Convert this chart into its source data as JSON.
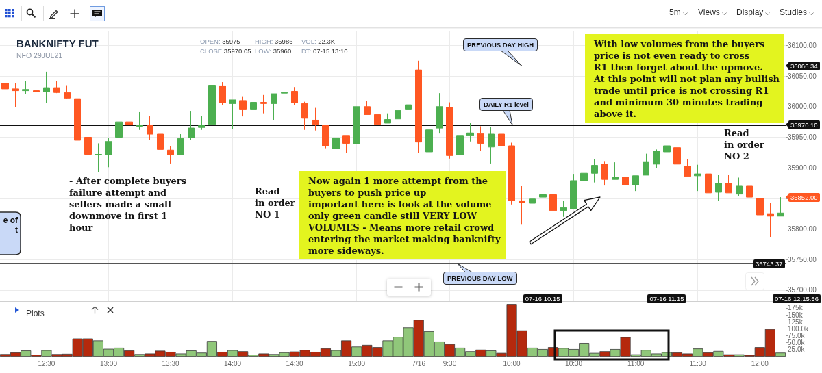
{
  "chart_data": [
    {
      "type": "candlestick",
      "title": "BANKNIFTY FUT",
      "subtitle": "NFO 29JUL21",
      "categories": [
        null,
        null,
        null,
        null,
        "12:30",
        null,
        null,
        null,
        null,
        null,
        "13:00",
        null,
        null,
        null,
        null,
        null,
        "13:30",
        null,
        null,
        null,
        null,
        null,
        "14:00",
        null,
        null,
        null,
        null,
        null,
        "14:30",
        null,
        null,
        null,
        null,
        null,
        "15:00",
        null,
        null,
        null,
        null,
        null,
        "7/16",
        null,
        null,
        "9:30",
        null,
        null,
        null,
        null,
        null,
        "10:00",
        null,
        null,
        null,
        null,
        null,
        "10:30",
        null,
        null,
        null,
        null,
        null,
        "11:00",
        null,
        null,
        null,
        null,
        null,
        "11:30",
        null,
        null,
        null,
        null,
        null,
        "12:00",
        null,
        null
      ],
      "ohlc": [
        [
          36038,
          36049,
          36028,
          36029
        ],
        [
          36029,
          36038,
          35999,
          36026
        ],
        [
          36026,
          36042,
          36021,
          36028
        ],
        [
          36026,
          36035,
          36017,
          36024
        ],
        [
          36024,
          36057,
          36006,
          36031
        ],
        [
          36031,
          36042,
          36022,
          36023
        ],
        [
          36023,
          36035,
          36013,
          36014
        ],
        [
          36013,
          36017,
          35941,
          35945
        ],
        [
          35950,
          35963,
          35908,
          35922
        ],
        [
          35921,
          35940,
          35893,
          35922
        ],
        [
          35921,
          35949,
          35901,
          35943
        ],
        [
          35950,
          35984,
          35946,
          35975
        ],
        [
          35975,
          35986,
          35960,
          35970.05
        ],
        [
          35968,
          35992,
          35962,
          35970
        ],
        [
          35969,
          35985,
          35946,
          35955
        ],
        [
          35955,
          35956,
          35918,
          35930
        ],
        [
          35929,
          35936,
          35907,
          35921
        ],
        [
          35921,
          35955,
          35921,
          35948
        ],
        [
          35949,
          35993,
          35946,
          35965
        ],
        [
          35966,
          35985,
          35962,
          35969
        ],
        [
          35971,
          36040,
          35971,
          36035
        ],
        [
          36034,
          36040,
          36003,
          36006
        ],
        [
          36005,
          36011,
          35964,
          36011
        ],
        [
          36010,
          36017,
          35984,
          35996
        ],
        [
          35996,
          36009,
          35984,
          36007
        ],
        [
          36007,
          36019,
          35989,
          36005
        ],
        [
          36005,
          36021,
          35978,
          36021
        ],
        [
          36022,
          36023,
          36001,
          36023
        ],
        [
          36025,
          36032,
          36003,
          36006
        ],
        [
          36005,
          36008,
          35962,
          35981
        ],
        [
          35978,
          35998,
          35961,
          35971
        ],
        [
          35970,
          35970,
          35932,
          35936
        ],
        [
          35931,
          35959,
          35931,
          35949
        ],
        [
          35953,
          35953,
          35924,
          35940
        ],
        [
          35939,
          36000,
          35939,
          36000
        ],
        [
          36000,
          36009,
          35987,
          35987
        ],
        [
          35987,
          35987,
          35961,
          35971
        ],
        [
          35973,
          35989,
          35973,
          35979
        ],
        [
          35980,
          35994,
          35980,
          35994
        ],
        [
          35996,
          36013,
          35991,
          36003
        ],
        [
          36060,
          36075,
          35924,
          35942
        ],
        [
          35926,
          35962,
          35902,
          35962
        ],
        [
          35965,
          36022,
          35956,
          36000
        ],
        [
          35999,
          36007,
          35915,
          35920
        ],
        [
          35921,
          35957,
          35910,
          35953
        ],
        [
          35953,
          35973,
          35943,
          35957
        ],
        [
          35956,
          35968,
          35928,
          35940
        ],
        [
          35934,
          35967,
          35907,
          35955
        ],
        [
          35955,
          35955,
          35928,
          35936
        ],
        [
          35936,
          35941,
          35840,
          35846
        ],
        [
          35846,
          35870,
          35807,
          35843
        ],
        [
          35842,
          35880,
          35835,
          35849
        ],
        [
          35852,
          35867,
          35844,
          35856
        ],
        [
          35856,
          35856,
          35811,
          35830
        ],
        [
          35830,
          35846,
          35820,
          35835
        ],
        [
          35833,
          35890,
          35833,
          35879
        ],
        [
          35879,
          35923,
          35872,
          35891
        ],
        [
          35891,
          35914,
          35876,
          35904
        ],
        [
          35906,
          35911,
          35871,
          35881
        ],
        [
          35881,
          35909,
          35881,
          35885
        ],
        [
          35885,
          35885,
          35854,
          35872
        ],
        [
          35872,
          35887,
          35862,
          35887
        ],
        [
          35888,
          35923,
          35888,
          35910
        ],
        [
          35906,
          35930,
          35900,
          35927
        ],
        [
          35926,
          35936,
          35902,
          35936
        ],
        [
          35933,
          35947,
          35906,
          35906
        ],
        [
          35903,
          35914,
          35886,
          35886
        ],
        [
          35887,
          35905,
          35862,
          35890
        ],
        [
          35890,
          35895,
          35853,
          35859
        ],
        [
          35860,
          35888,
          35846,
          35875
        ],
        [
          35875,
          35888,
          35859,
          35859
        ],
        [
          35857,
          35884,
          35854,
          35870
        ],
        [
          35870,
          35882,
          35852,
          35852
        ],
        [
          35850,
          35864,
          35823,
          35823
        ],
        [
          35825,
          35843,
          35787,
          35821
        ],
        [
          35821,
          35852,
          35821,
          35826
        ]
      ],
      "colors": [
        "#ff5722",
        "#ff5722",
        "#4caf50",
        "#ff5722",
        "#4caf50",
        "#ff5722",
        "#ff5722",
        "#ff5722",
        "#ff5722",
        "#4caf50",
        "#4caf50",
        "#4caf50",
        "#ff5722",
        "#4caf50",
        "#ff5722",
        "#ff5722",
        "#ff5722",
        "#4caf50",
        "#4caf50",
        "#4caf50",
        "#4caf50",
        "#ff5722",
        "#4caf50",
        "#ff5722",
        "#4caf50",
        "#ff5722",
        "#4caf50",
        "#4caf50",
        "#ff5722",
        "#ff5722",
        "#ff5722",
        "#ff5722",
        "#4caf50",
        "#ff5722",
        "#4caf50",
        "#ff5722",
        "#ff5722",
        "#4caf50",
        "#4caf50",
        "#4caf50",
        "#ff5722",
        "#4caf50",
        "#4caf50",
        "#ff5722",
        "#4caf50",
        "#4caf50",
        "#ff5722",
        "#4caf50",
        "#ff5722",
        "#ff5722",
        "#ff5722",
        "#4caf50",
        "#4caf50",
        "#ff5722",
        "#4caf50",
        "#4caf50",
        "#4caf50",
        "#4caf50",
        "#ff5722",
        "#4caf50",
        "#ff5722",
        "#4caf50",
        "#4caf50",
        "#4caf50",
        "#4caf50",
        "#ff5722",
        "#ff5722",
        "#4caf50",
        "#ff5722",
        "#4caf50",
        "#ff5722",
        "#4caf50",
        "#ff5722",
        "#ff5722",
        "#ff5722",
        "#4caf50"
      ],
      "ylim": [
        35682,
        36124
      ],
      "yticks": [
        {
          "value": 35700,
          "label": "35700.00"
        },
        {
          "value": 35750,
          "label": "35750.00"
        },
        {
          "value": 35800,
          "label": "35800.00"
        },
        {
          "value": 35850,
          "label": null
        },
        {
          "value": 35900,
          "label": "35900.00"
        },
        {
          "value": 35950,
          "label": "35950.00"
        },
        {
          "value": 36000,
          "label": "36000.00"
        },
        {
          "value": 36050,
          "label": "36050.00"
        },
        {
          "value": 36100,
          "label": "36100.00"
        }
      ],
      "grid": true,
      "ref_lines": [
        {
          "axis": "y",
          "value": 36066.34,
          "label": "36066.34",
          "color": "#555555"
        },
        {
          "axis": "y",
          "value": 35970.1,
          "label": "35970.10",
          "color": "#111111"
        },
        {
          "axis": "y",
          "value": 35743.37,
          "label": "35743.37",
          "color": "#555555"
        }
      ],
      "annotations": [
        "OPEN: 35975",
        "HIGH: 35986",
        "VOL: 22.3K",
        "CLOSE:35970.05",
        "LOW: 35960",
        "DT: 07-15 13:10",
        "- After complete buyers\nfailure attempt and\nsellers made a small\ndownmove in first 1\nhour",
        "Read\nin order\nNO 1",
        "Now again 1 more attempt from the\nbuyers to push price up\nimportant here is look at the volume\nonly green candle still VERY LOW\nVOLUMES - Means more retail crowd\nentering the market making banknifty\nmore sideways.",
        "With low volumes from the buyers\nprice is not even ready to cross\nR1 then forget about the upmove.\nAt this point will not plan any bullish\ntrade until price is not crossing R1\nand minimum 30 minutes trading\nabove it.",
        "Read\nin order\nNO 2",
        "e of\nt",
        "35852.00",
        "07-16 12:15:56",
        "5m",
        "Views",
        "Display",
        "Studies",
        {
          "text": "PREVIOUS DAY HIGH",
          "y": 36066.34
        },
        {
          "text": "DAILY R1 level",
          "y": 35970.1
        },
        {
          "text": "PREVIOUS DAY LOW",
          "y": 35743.37
        },
        "07-16 10:15",
        "07-16 11:15"
      ]
    },
    {
      "type": "bar",
      "title": "Plots",
      "categories": [
        null,
        null,
        null,
        null,
        null,
        null,
        null,
        null,
        null,
        null,
        null,
        null,
        null,
        null,
        null,
        null,
        null,
        null,
        null,
        null,
        null,
        null,
        null,
        null,
        null,
        null,
        null,
        null,
        null,
        null,
        null,
        null,
        null,
        null,
        null,
        null,
        null,
        null,
        null,
        null,
        null,
        null,
        null,
        null,
        null,
        null,
        null,
        null,
        null,
        null,
        null,
        null,
        null,
        null,
        null,
        null,
        null,
        null,
        null,
        null,
        null,
        null,
        null,
        null,
        null,
        null,
        null,
        null,
        null,
        null,
        null,
        null,
        null,
        null,
        null,
        null
      ],
      "values": [
        9000,
        15000,
        22000,
        7000,
        23000,
        9000,
        10000,
        65000,
        65000,
        58000,
        28000,
        32000,
        22300,
        9000,
        11000,
        21000,
        17000,
        11000,
        22000,
        14000,
        56000,
        17000,
        23000,
        19000,
        7000,
        11000,
        9000,
        15000,
        18000,
        24000,
        17000,
        30000,
        23000,
        58000,
        36000,
        42000,
        34000,
        58000,
        71000,
        105000,
        132000,
        91000,
        54000,
        45000,
        32000,
        19000,
        25000,
        22000,
        13000,
        189000,
        94000,
        32000,
        27000,
        34000,
        31000,
        27000,
        49000,
        13000,
        19000,
        27000,
        70000,
        8000,
        24000,
        11000,
        16000,
        15000,
        11000,
        29000,
        15000,
        20000,
        8000,
        8000,
        6000,
        34000,
        99000,
        14000
      ],
      "colors": [
        "#b5290d",
        "#b5290d",
        "#90c77a",
        "#b5290d",
        "#90c77a",
        "#b5290d",
        "#b5290d",
        "#b5290d",
        "#b5290d",
        "#90c77a",
        "#90c77a",
        "#90c77a",
        "#b5290d",
        "#90c77a",
        "#b5290d",
        "#b5290d",
        "#b5290d",
        "#90c77a",
        "#90c77a",
        "#90c77a",
        "#90c77a",
        "#b5290d",
        "#90c77a",
        "#b5290d",
        "#90c77a",
        "#b5290d",
        "#90c77a",
        "#90c77a",
        "#b5290d",
        "#b5290d",
        "#b5290d",
        "#b5290d",
        "#90c77a",
        "#b5290d",
        "#90c77a",
        "#b5290d",
        "#b5290d",
        "#90c77a",
        "#90c77a",
        "#90c77a",
        "#b5290d",
        "#90c77a",
        "#90c77a",
        "#b5290d",
        "#90c77a",
        "#90c77a",
        "#b5290d",
        "#90c77a",
        "#b5290d",
        "#b5290d",
        "#b5290d",
        "#90c77a",
        "#90c77a",
        "#b5290d",
        "#90c77a",
        "#90c77a",
        "#90c77a",
        "#90c77a",
        "#b5290d",
        "#90c77a",
        "#b5290d",
        "#90c77a",
        "#90c77a",
        "#90c77a",
        "#90c77a",
        "#b5290d",
        "#b5290d",
        "#90c77a",
        "#b5290d",
        "#90c77a",
        "#b5290d",
        "#90c77a",
        "#b5290d",
        "#b5290d",
        "#b5290d",
        "#90c77a"
      ],
      "ylim": [
        0,
        192000
      ],
      "yticks": [
        {
          "value": 25000,
          "label": "25.0k"
        },
        {
          "value": 50000,
          "label": "50.0k"
        },
        {
          "value": 75000,
          "label": "75.0k"
        },
        {
          "value": 100000,
          "label": "100.0k"
        },
        {
          "value": 125000,
          "label": "125k"
        },
        {
          "value": 150000,
          "label": "150k"
        },
        {
          "value": 175000,
          "label": "175k"
        }
      ],
      "grid": "x",
      "tick_labels": "y"
    }
  ]
}
